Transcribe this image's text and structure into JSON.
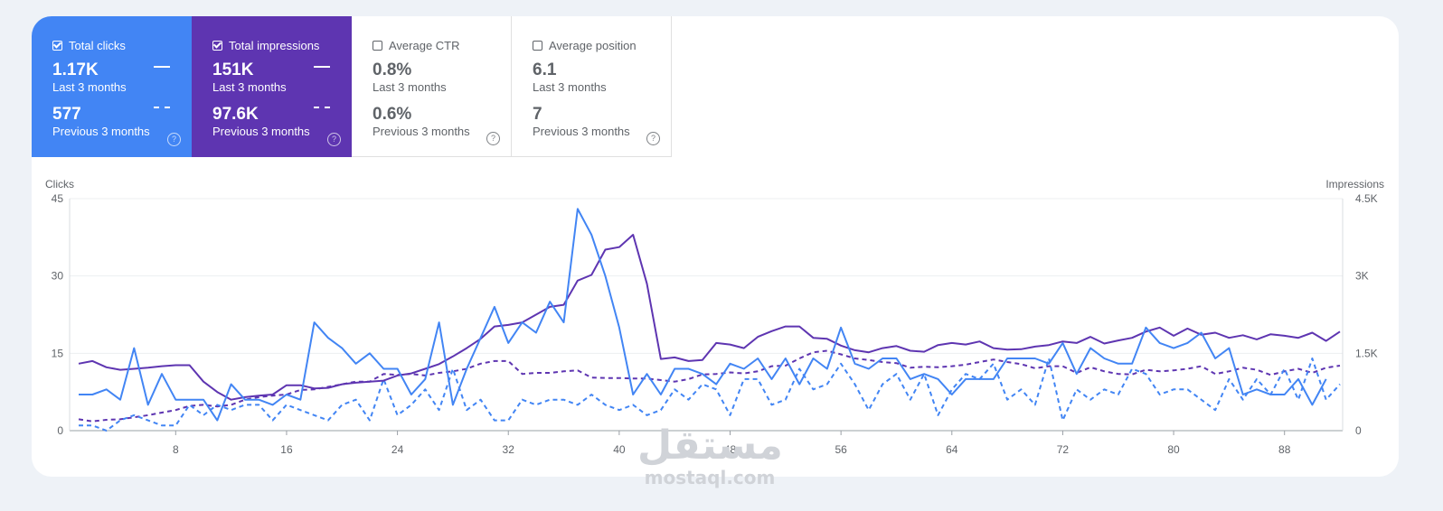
{
  "metrics": [
    {
      "label": "Total clicks",
      "value": "1.17K",
      "period": "Last 3 months",
      "prev_value": "577",
      "prev_period": "Previous 3 months",
      "checked": true
    },
    {
      "label": "Total impressions",
      "value": "151K",
      "period": "Last 3 months",
      "prev_value": "97.6K",
      "prev_period": "Previous 3 months",
      "checked": true
    },
    {
      "label": "Average CTR",
      "value": "0.8%",
      "period": "Last 3 months",
      "prev_value": "0.6%",
      "prev_period": "Previous 3 months",
      "checked": false
    },
    {
      "label": "Average position",
      "value": "6.1",
      "period": "Last 3 months",
      "prev_value": "7",
      "prev_period": "Previous 3 months",
      "checked": false
    }
  ],
  "help_glyph": "?",
  "colors": {
    "clicks": "#4285f4",
    "impressions": "#5e35b1",
    "background": "#eef2f7"
  },
  "watermark": {
    "arabic": "مستقل",
    "latin": "mostaql.com"
  },
  "chart_data": {
    "type": "line",
    "title": "",
    "ylabel_left": "Clicks",
    "ylabel_right": "Impressions",
    "ylim_left": [
      0,
      45
    ],
    "ylim_right": [
      0,
      4500
    ],
    "yticks_left": [
      {
        "value": 0,
        "label": "0"
      },
      {
        "value": 15,
        "label": "15"
      },
      {
        "value": 30,
        "label": "30"
      },
      {
        "value": 45,
        "label": "45"
      }
    ],
    "yticks_right": [
      {
        "value": 0,
        "label": "0"
      },
      {
        "value": 1500,
        "label": "1.5K"
      },
      {
        "value": 3000,
        "label": "3K"
      },
      {
        "value": 4500,
        "label": "4.5K"
      }
    ],
    "xticks": [
      8,
      16,
      24,
      32,
      40,
      48,
      56,
      64,
      72,
      80,
      88
    ],
    "x_start": 1,
    "grid": true,
    "series": [
      {
        "name": "Total clicks",
        "color": "#4285f4",
        "style": "solid",
        "axis": "left",
        "values": [
          7,
          7,
          8,
          6,
          16,
          5,
          11,
          6,
          6,
          6,
          2,
          9,
          6,
          6,
          5,
          7,
          6,
          21,
          18,
          16,
          13,
          15,
          12,
          12,
          7,
          10,
          21,
          5,
          12,
          18,
          24,
          17,
          21,
          19,
          25,
          21,
          43,
          38,
          30,
          20,
          7,
          11,
          7,
          12,
          12,
          11,
          9,
          13,
          12,
          14,
          10,
          14,
          9,
          14,
          12,
          20,
          13,
          12,
          14,
          14,
          10,
          11,
          10,
          7,
          10,
          10,
          10,
          14,
          14,
          14,
          13,
          17,
          11,
          16,
          14,
          13,
          13,
          20,
          17,
          16,
          17,
          19,
          14,
          16,
          7,
          8,
          7,
          7,
          10,
          5,
          10
        ]
      },
      {
        "name": "Total clicks (previous)",
        "color": "#4285f4",
        "style": "dashed",
        "axis": "left",
        "values": [
          1,
          1,
          0,
          2,
          3,
          2,
          1,
          1,
          5,
          3,
          5,
          4,
          5,
          5,
          2,
          5,
          4,
          3,
          2,
          5,
          6,
          2,
          10,
          3,
          5,
          8,
          4,
          12,
          4,
          6,
          2,
          2,
          6,
          5,
          6,
          6,
          5,
          7,
          5,
          4,
          5,
          3,
          4,
          8,
          6,
          9,
          8,
          3,
          10,
          10,
          5,
          6,
          12,
          8,
          9,
          13,
          9,
          4,
          9,
          11,
          6,
          11,
          3,
          8,
          11,
          10,
          13,
          6,
          8,
          5,
          14,
          2,
          8,
          6,
          8,
          7,
          12,
          11,
          7,
          8,
          8,
          6,
          4,
          10,
          6,
          10,
          7,
          12,
          6,
          14,
          6,
          9
        ]
      },
      {
        "name": "Total impressions",
        "color": "#5e35b1",
        "style": "solid",
        "axis": "right",
        "values": [
          1300,
          1350,
          1230,
          1180,
          1200,
          1220,
          1250,
          1270,
          1270,
          950,
          750,
          600,
          650,
          680,
          700,
          880,
          880,
          820,
          830,
          900,
          930,
          950,
          970,
          1070,
          1110,
          1200,
          1290,
          1440,
          1600,
          1780,
          2020,
          2050,
          2100,
          2250,
          2400,
          2440,
          2910,
          3020,
          3510,
          3560,
          3800,
          2850,
          1390,
          1420,
          1350,
          1370,
          1700,
          1670,
          1600,
          1820,
          1930,
          2020,
          2020,
          1800,
          1780,
          1650,
          1560,
          1520,
          1600,
          1640,
          1550,
          1530,
          1660,
          1700,
          1670,
          1730,
          1600,
          1570,
          1580,
          1630,
          1660,
          1730,
          1700,
          1820,
          1690,
          1750,
          1800,
          1920,
          2000,
          1840,
          1980,
          1860,
          1900,
          1800,
          1850,
          1770,
          1870,
          1840,
          1800,
          1900,
          1740,
          1920
        ]
      },
      {
        "name": "Total impressions (previous)",
        "color": "#5e35b1",
        "style": "dashed",
        "axis": "right",
        "values": [
          220,
          180,
          210,
          220,
          260,
          300,
          350,
          400,
          480,
          500,
          470,
          500,
          600,
          650,
          680,
          700,
          790,
          800,
          850,
          900,
          950,
          950,
          1100,
          1080,
          1100,
          1070,
          1120,
          1150,
          1200,
          1300,
          1350,
          1350,
          1100,
          1120,
          1120,
          1150,
          1170,
          1030,
          1020,
          1020,
          1010,
          1010,
          980,
          950,
          1000,
          1090,
          1100,
          1130,
          1110,
          1150,
          1250,
          1260,
          1400,
          1520,
          1550,
          1480,
          1400,
          1370,
          1330,
          1310,
          1220,
          1240,
          1230,
          1250,
          1280,
          1330,
          1380,
          1330,
          1290,
          1210,
          1250,
          1250,
          1120,
          1230,
          1150,
          1100,
          1090,
          1180,
          1150,
          1170,
          1200,
          1250,
          1100,
          1150,
          1220,
          1180,
          1080,
          1150,
          1200,
          1120,
          1220,
          1260
        ]
      }
    ]
  }
}
